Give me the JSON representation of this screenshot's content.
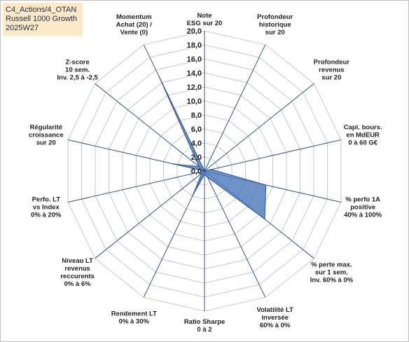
{
  "corner_label": {
    "line1": "C4_Actions/4_OTAN",
    "line2": "Russell 1000 Growth",
    "line3": "2025W27"
  },
  "colors": {
    "fill": "#4f7bbd",
    "stroke": "#2f5597",
    "spoke": "#2f5597",
    "ring": "#c8c8c8",
    "box_bg": "#fde9c8"
  },
  "chart_data": {
    "type": "radar",
    "r_min": 0,
    "r_max": 20,
    "r_step": 2,
    "tick_labels": [
      "0,0",
      "2,0",
      "4,0",
      "6,0",
      "8,0",
      "10,0",
      "12,0",
      "14,0",
      "16,0",
      "18,0",
      "20,0"
    ],
    "axes": [
      {
        "lines": [
          "Note",
          "ESG sur 20"
        ]
      },
      {
        "lines": [
          "Profondeur",
          "historique",
          "sur 20"
        ]
      },
      {
        "lines": [
          "Profondeur",
          "revenus",
          "sur 20"
        ]
      },
      {
        "lines": [
          "Capi. bours.",
          "en MdEUR",
          "0 à 60 G€"
        ]
      },
      {
        "lines": [
          "% perfo 1A",
          "positive",
          "40% à 100%"
        ]
      },
      {
        "lines": [
          "% perte max.",
          "sur 1 sem.",
          "Inv. 60% à 0%"
        ]
      },
      {
        "lines": [
          "Volatilité LT",
          "inversée",
          "60% à 0%"
        ]
      },
      {
        "lines": [
          "Ratio Sharpe",
          "0 à 2"
        ]
      },
      {
        "lines": [
          "Rendement LT",
          "0% à 30%"
        ]
      },
      {
        "lines": [
          "Niveau LT",
          "revenus",
          "reccurents",
          "0% à 6%"
        ]
      },
      {
        "lines": [
          "Perfo. LT",
          "vs Index",
          "0% à 20%"
        ]
      },
      {
        "lines": [
          "Régularité",
          "croissance",
          "sur 20"
        ]
      },
      {
        "lines": [
          "Z-score",
          "10 sem.",
          "Inv. 2,5 à -2,5"
        ]
      },
      {
        "lines": [
          "Momentum",
          "Achat (20) /",
          "Vente (0)"
        ]
      }
    ],
    "values": [
      0.0,
      0.0,
      0.0,
      1.0,
      9.0,
      11.0,
      1.0,
      0.5,
      4.0,
      0.5,
      0.0,
      4.5,
      1.0,
      15.0
    ]
  }
}
